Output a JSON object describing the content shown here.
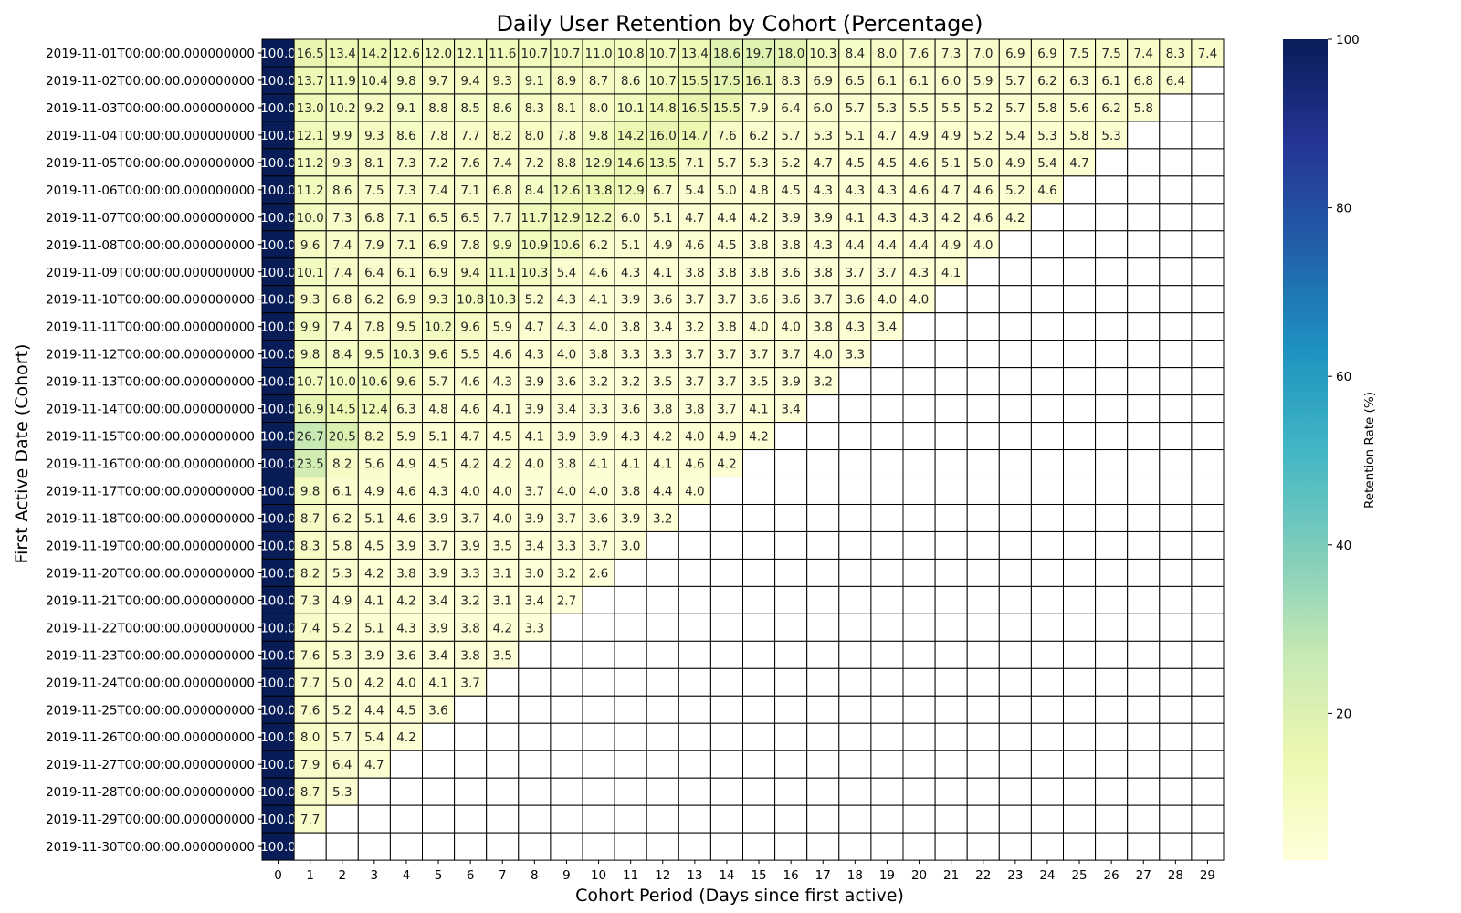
{
  "chart_data": {
    "type": "heatmap",
    "title": "Daily User Retention by Cohort (Percentage)",
    "xlabel": "Cohort Period (Days since first active)",
    "ylabel": "First Active Date (Cohort)",
    "colorbar_label": "Retention Rate (%)",
    "colorbar_ticks": [
      "20",
      "40",
      "60",
      "80",
      "100"
    ],
    "colormap": "YlGnBu",
    "value_range": [
      0,
      100
    ],
    "annotations": true,
    "x_ticks": [
      "0",
      "1",
      "2",
      "3",
      "4",
      "5",
      "6",
      "7",
      "8",
      "9",
      "10",
      "11",
      "12",
      "13",
      "14",
      "15",
      "16",
      "17",
      "18",
      "19",
      "20",
      "21",
      "22",
      "23",
      "24",
      "25",
      "26",
      "27",
      "28",
      "29"
    ],
    "y_ticks": [
      "2019-11-01T00:00:00.000000000",
      "2019-11-02T00:00:00.000000000",
      "2019-11-03T00:00:00.000000000",
      "2019-11-04T00:00:00.000000000",
      "2019-11-05T00:00:00.000000000",
      "2019-11-06T00:00:00.000000000",
      "2019-11-07T00:00:00.000000000",
      "2019-11-08T00:00:00.000000000",
      "2019-11-09T00:00:00.000000000",
      "2019-11-10T00:00:00.000000000",
      "2019-11-11T00:00:00.000000000",
      "2019-11-12T00:00:00.000000000",
      "2019-11-13T00:00:00.000000000",
      "2019-11-14T00:00:00.000000000",
      "2019-11-15T00:00:00.000000000",
      "2019-11-16T00:00:00.000000000",
      "2019-11-17T00:00:00.000000000",
      "2019-11-18T00:00:00.000000000",
      "2019-11-19T00:00:00.000000000",
      "2019-11-20T00:00:00.000000000",
      "2019-11-21T00:00:00.000000000",
      "2019-11-22T00:00:00.000000000",
      "2019-11-23T00:00:00.000000000",
      "2019-11-24T00:00:00.000000000",
      "2019-11-25T00:00:00.000000000",
      "2019-11-26T00:00:00.000000000",
      "2019-11-27T00:00:00.000000000",
      "2019-11-28T00:00:00.000000000",
      "2019-11-29T00:00:00.000000000",
      "2019-11-30T00:00:00.000000000"
    ],
    "values": [
      [
        100.0,
        16.5,
        13.4,
        14.2,
        12.6,
        12.0,
        12.1,
        11.6,
        10.7,
        10.7,
        11.0,
        10.8,
        10.7,
        13.4,
        18.6,
        19.7,
        18.0,
        10.3,
        8.4,
        8.0,
        7.6,
        7.3,
        7.0,
        6.9,
        6.9,
        7.5,
        7.5,
        7.4,
        8.3,
        7.4
      ],
      [
        100.0,
        13.7,
        11.9,
        10.4,
        9.8,
        9.7,
        9.4,
        9.3,
        9.1,
        8.9,
        8.7,
        8.6,
        10.7,
        15.5,
        17.5,
        16.1,
        8.3,
        6.9,
        6.5,
        6.1,
        6.1,
        6.0,
        5.9,
        5.7,
        6.2,
        6.3,
        6.1,
        6.8,
        6.4
      ],
      [
        100.0,
        13.0,
        10.2,
        9.2,
        9.1,
        8.8,
        8.5,
        8.6,
        8.3,
        8.1,
        8.0,
        10.1,
        14.8,
        16.5,
        15.5,
        7.9,
        6.4,
        6.0,
        5.7,
        5.3,
        5.5,
        5.5,
        5.2,
        5.7,
        5.8,
        5.6,
        6.2,
        5.8
      ],
      [
        100.0,
        12.1,
        9.9,
        9.3,
        8.6,
        7.8,
        7.7,
        8.2,
        8.0,
        7.8,
        9.8,
        14.2,
        16.0,
        14.7,
        7.6,
        6.2,
        5.7,
        5.3,
        5.1,
        4.7,
        4.9,
        4.9,
        5.2,
        5.4,
        5.3,
        5.8,
        5.3
      ],
      [
        100.0,
        11.2,
        9.3,
        8.1,
        7.3,
        7.2,
        7.6,
        7.4,
        7.2,
        8.8,
        12.9,
        14.6,
        13.5,
        7.1,
        5.7,
        5.3,
        5.2,
        4.7,
        4.5,
        4.5,
        4.6,
        5.1,
        5.0,
        4.9,
        5.4,
        4.7
      ],
      [
        100.0,
        11.2,
        8.6,
        7.5,
        7.3,
        7.4,
        7.1,
        6.8,
        8.4,
        12.6,
        13.8,
        12.9,
        6.7,
        5.4,
        5.0,
        4.8,
        4.5,
        4.3,
        4.3,
        4.3,
        4.6,
        4.7,
        4.6,
        5.2,
        4.6
      ],
      [
        100.0,
        10.0,
        7.3,
        6.8,
        7.1,
        6.5,
        6.5,
        7.7,
        11.7,
        12.9,
        12.2,
        6.0,
        5.1,
        4.7,
        4.4,
        4.2,
        3.9,
        3.9,
        4.1,
        4.3,
        4.3,
        4.2,
        4.6,
        4.2
      ],
      [
        100.0,
        9.6,
        7.4,
        7.9,
        7.1,
        6.9,
        7.8,
        9.9,
        10.9,
        10.6,
        6.2,
        5.1,
        4.9,
        4.6,
        4.5,
        3.8,
        3.8,
        4.3,
        4.4,
        4.4,
        4.4,
        4.9,
        4.0
      ],
      [
        100.0,
        10.1,
        7.4,
        6.4,
        6.1,
        6.9,
        9.4,
        11.1,
        10.3,
        5.4,
        4.6,
        4.3,
        4.1,
        3.8,
        3.8,
        3.8,
        3.6,
        3.8,
        3.7,
        3.7,
        4.3,
        4.1
      ],
      [
        100.0,
        9.3,
        6.8,
        6.2,
        6.9,
        9.3,
        10.8,
        10.3,
        5.2,
        4.3,
        4.1,
        3.9,
        3.6,
        3.7,
        3.7,
        3.6,
        3.6,
        3.7,
        3.6,
        4.0,
        4.0
      ],
      [
        100.0,
        9.9,
        7.4,
        7.8,
        9.5,
        10.2,
        9.6,
        5.9,
        4.7,
        4.3,
        4.0,
        3.8,
        3.4,
        3.2,
        3.8,
        4.0,
        4.0,
        3.8,
        4.3,
        3.4
      ],
      [
        100.0,
        9.8,
        8.4,
        9.5,
        10.3,
        9.6,
        5.5,
        4.6,
        4.3,
        4.0,
        3.8,
        3.3,
        3.3,
        3.7,
        3.7,
        3.7,
        3.7,
        4.0,
        3.3
      ],
      [
        100.0,
        10.7,
        10.0,
        10.6,
        9.6,
        5.7,
        4.6,
        4.3,
        3.9,
        3.6,
        3.2,
        3.2,
        3.5,
        3.7,
        3.7,
        3.5,
        3.9,
        3.2
      ],
      [
        100.0,
        16.9,
        14.5,
        12.4,
        6.3,
        4.8,
        4.6,
        4.1,
        3.9,
        3.4,
        3.3,
        3.6,
        3.8,
        3.8,
        3.7,
        4.1,
        3.4
      ],
      [
        100.0,
        26.7,
        20.5,
        8.2,
        5.9,
        5.1,
        4.7,
        4.5,
        4.1,
        3.9,
        3.9,
        4.3,
        4.2,
        4.0,
        4.9,
        4.2
      ],
      [
        100.0,
        23.5,
        8.2,
        5.6,
        4.9,
        4.5,
        4.2,
        4.2,
        4.0,
        3.8,
        4.1,
        4.1,
        4.1,
        4.6,
        4.2
      ],
      [
        100.0,
        9.8,
        6.1,
        4.9,
        4.6,
        4.3,
        4.0,
        4.0,
        3.7,
        4.0,
        4.0,
        3.8,
        4.4,
        4.0
      ],
      [
        100.0,
        8.7,
        6.2,
        5.1,
        4.6,
        3.9,
        3.7,
        4.0,
        3.9,
        3.7,
        3.6,
        3.9,
        3.2
      ],
      [
        100.0,
        8.3,
        5.8,
        4.5,
        3.9,
        3.7,
        3.9,
        3.5,
        3.4,
        3.3,
        3.7,
        3.0
      ],
      [
        100.0,
        8.2,
        5.3,
        4.2,
        3.8,
        3.9,
        3.3,
        3.1,
        3.0,
        3.2,
        2.6
      ],
      [
        100.0,
        7.3,
        4.9,
        4.1,
        4.2,
        3.4,
        3.2,
        3.1,
        3.4,
        2.7
      ],
      [
        100.0,
        7.4,
        5.2,
        5.1,
        4.3,
        3.9,
        3.8,
        4.2,
        3.3
      ],
      [
        100.0,
        7.6,
        5.3,
        3.9,
        3.6,
        3.4,
        3.8,
        3.5
      ],
      [
        100.0,
        7.7,
        5.0,
        4.2,
        4.0,
        4.1,
        3.7
      ],
      [
        100.0,
        7.6,
        5.2,
        4.4,
        4.5,
        3.6
      ],
      [
        100.0,
        8.0,
        5.7,
        5.4,
        4.2
      ],
      [
        100.0,
        7.9,
        6.4,
        4.7
      ],
      [
        100.0,
        8.7,
        5.3
      ],
      [
        100.0,
        7.7
      ],
      [
        100.0
      ]
    ]
  }
}
